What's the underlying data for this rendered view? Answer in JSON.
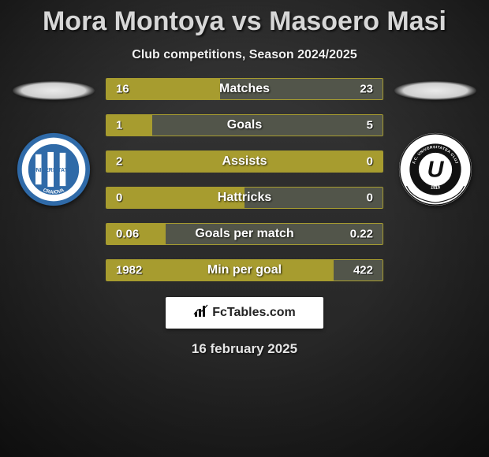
{
  "title": "Mora Montoya vs Masoero Masi",
  "subtitle": "Club competitions, Season 2024/2025",
  "attribution": "FcTables.com",
  "date_text": "16 february 2025",
  "colors": {
    "bar_left": "#a79c2f",
    "bar_right": "#52554a",
    "bar_border": "#a79c2f",
    "title_color": "#d7d7d7"
  },
  "team_left": {
    "badge": {
      "outer_fill": "#2f6aa8",
      "inner_fill": "#ffffff",
      "stripe_a": "#2f6aa8",
      "stripe_b": "#ffffff",
      "text_top": "CLUBUL SPORTIV",
      "text_mid": "UNIVERSITATEA",
      "text_bottom": "CRAIOVA"
    }
  },
  "team_right": {
    "badge": {
      "outer_fill": "#ffffff",
      "ring_fill": "#111111",
      "center_letter": "U",
      "ribbon_text": "F.C. UNIVERSITATEA CLUJ",
      "year": "1919"
    }
  },
  "stats": [
    {
      "label": "Matches",
      "left_val": "16",
      "right_val": "23",
      "left_pct": 41.0,
      "right_pct": 59.0
    },
    {
      "label": "Goals",
      "left_val": "1",
      "right_val": "5",
      "left_pct": 16.7,
      "right_pct": 83.3
    },
    {
      "label": "Assists",
      "left_val": "2",
      "right_val": "0",
      "left_pct": 100.0,
      "right_pct": 0.0
    },
    {
      "label": "Hattricks",
      "left_val": "0",
      "right_val": "0",
      "left_pct": 50.0,
      "right_pct": 50.0
    },
    {
      "label": "Goals per match",
      "left_val": "0.06",
      "right_val": "0.22",
      "left_pct": 21.4,
      "right_pct": 78.6
    },
    {
      "label": "Min per goal",
      "left_val": "1982",
      "right_val": "422",
      "left_pct": 82.4,
      "right_pct": 17.6
    }
  ]
}
